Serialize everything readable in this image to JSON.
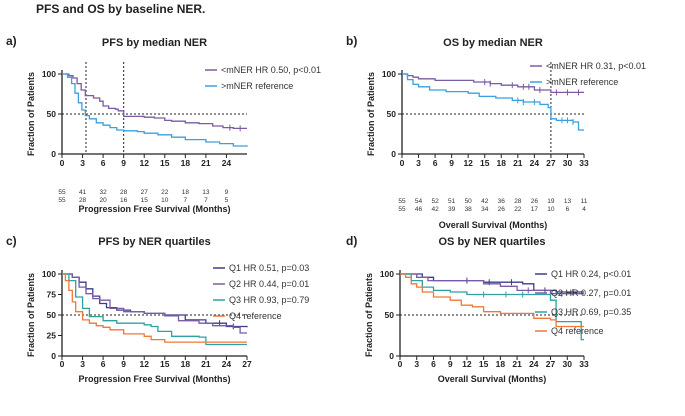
{
  "figure_title": "PFS and OS by baseline NER.",
  "chart_data": [
    {
      "panel_letter": "a)",
      "type": "line",
      "title": "PFS by median NER",
      "xlabel": "Progression Free Survival (Months)",
      "ylabel": "Fraction of Patients",
      "xlim": [
        0,
        27
      ],
      "ylim": [
        0,
        100
      ],
      "xticks": [
        0,
        3,
        6,
        9,
        12,
        15,
        18,
        21,
        24
      ],
      "yticks": [
        0,
        50,
        100
      ],
      "reference_y": 50,
      "vlines": [
        3.5,
        9
      ],
      "legend_position": "top-right",
      "at_risk": [
        [
          "55",
          "41",
          "32",
          "28",
          "27",
          "22",
          "18",
          "13",
          "9"
        ],
        [
          "55",
          "28",
          "20",
          "16",
          "15",
          "10",
          "7",
          "7",
          "5"
        ]
      ],
      "series": [
        {
          "name": "<mNER HR 0.50, p<0.01",
          "color": "#7b5aa6",
          "points": [
            [
              0,
              100
            ],
            [
              1,
              98
            ],
            [
              1.6,
              95
            ],
            [
              2.2,
              88
            ],
            [
              2.8,
              80
            ],
            [
              3.4,
              73
            ],
            [
              4.6,
              70
            ],
            [
              5.5,
              66
            ],
            [
              6,
              60
            ],
            [
              6.8,
              57
            ],
            [
              7.8,
              56
            ],
            [
              8.2,
              54
            ],
            [
              9,
              47
            ],
            [
              10,
              47
            ],
            [
              11.5,
              47
            ],
            [
              12,
              46
            ],
            [
              13.5,
              45
            ],
            [
              15,
              42
            ],
            [
              16,
              41
            ],
            [
              18,
              39
            ],
            [
              20,
              38
            ],
            [
              22,
              35
            ],
            [
              23.5,
              33
            ],
            [
              25,
              32
            ],
            [
              27,
              32
            ]
          ],
          "censor_x": [
            24.5,
            26
          ]
        },
        {
          "name": ">mNER reference",
          "color": "#3aa0e0",
          "points": [
            [
              0,
              100
            ],
            [
              0.8,
              96
            ],
            [
              1.4,
              88
            ],
            [
              1.9,
              76
            ],
            [
              2.4,
              64
            ],
            [
              2.9,
              55
            ],
            [
              3.4,
              48
            ],
            [
              4,
              44
            ],
            [
              5,
              39
            ],
            [
              6,
              36
            ],
            [
              7,
              33
            ],
            [
              8,
              30
            ],
            [
              9,
              29
            ],
            [
              11,
              28
            ],
            [
              12,
              26
            ],
            [
              14,
              24
            ],
            [
              16,
              21
            ],
            [
              18,
              18
            ],
            [
              21,
              15
            ],
            [
              23,
              13
            ],
            [
              25,
              10
            ],
            [
              27,
              9
            ]
          ],
          "censor_x": []
        }
      ]
    },
    {
      "panel_letter": "b)",
      "type": "line",
      "title": "OS by median NER",
      "xlabel": "Overall Survival (Months)",
      "ylabel": "Fraction of Patients",
      "xlim": [
        0,
        33
      ],
      "ylim": [
        0,
        100
      ],
      "xticks": [
        0,
        3,
        6,
        9,
        12,
        15,
        18,
        21,
        24,
        27,
        30,
        33
      ],
      "yticks": [
        0,
        50,
        100
      ],
      "reference_y": 50,
      "vlines": [
        27
      ],
      "legend_position": "top-right",
      "at_risk": [
        [
          "55",
          "54",
          "52",
          "51",
          "50",
          "42",
          "36",
          "28",
          "26",
          "19",
          "13",
          "11"
        ],
        [
          "55",
          "46",
          "42",
          "39",
          "38",
          "34",
          "26",
          "22",
          "17",
          "10",
          "6",
          "4"
        ]
      ],
      "series": [
        {
          "name": "<mNER HR 0.31, p<0.01",
          "color": "#7b5aa6",
          "points": [
            [
              0,
              100
            ],
            [
              1,
              98
            ],
            [
              2,
              96
            ],
            [
              3,
              94
            ],
            [
              6,
              92
            ],
            [
              12,
              92
            ],
            [
              13,
              90
            ],
            [
              16,
              88
            ],
            [
              18,
              86
            ],
            [
              21,
              84
            ],
            [
              24,
              80
            ],
            [
              27,
              77
            ],
            [
              33,
              77
            ]
          ],
          "censor_x": [
            15,
            16,
            20,
            22,
            23,
            25,
            28,
            30,
            32
          ]
        },
        {
          "name": ">mNER reference",
          "color": "#3aa0e0",
          "points": [
            [
              0,
              100
            ],
            [
              1,
              93
            ],
            [
              2,
              87
            ],
            [
              3,
              84
            ],
            [
              5,
              80
            ],
            [
              8,
              78
            ],
            [
              12,
              76
            ],
            [
              14,
              72
            ],
            [
              17,
              70
            ],
            [
              20,
              67
            ],
            [
              22,
              65
            ],
            [
              25,
              62
            ],
            [
              26.5,
              58
            ],
            [
              27,
              44
            ],
            [
              28,
              42
            ],
            [
              31,
              40
            ],
            [
              32,
              30
            ],
            [
              33,
              30
            ]
          ],
          "censor_x": [
            21,
            22,
            24,
            29,
            30,
            31
          ]
        }
      ]
    },
    {
      "panel_letter": "c)",
      "type": "line",
      "title": "PFS by NER quartiles",
      "xlabel": "Progression Free Survival (Months)",
      "ylabel": "Fraction of Patients",
      "xlim": [
        0,
        27
      ],
      "ylim": [
        0,
        100
      ],
      "xticks": [
        0,
        3,
        6,
        9,
        12,
        15,
        18,
        21,
        24,
        27
      ],
      "yticks": [
        0,
        25,
        50,
        75,
        100
      ],
      "reference_y": 50,
      "vlines": [],
      "legend_position": "top-right",
      "at_risk": [],
      "series": [
        {
          "name": "Q1 HR 0.51, p=0.03",
          "color": "#3c3c8c",
          "points": [
            [
              0,
              100
            ],
            [
              1.5,
              96
            ],
            [
              2.5,
              90
            ],
            [
              3.5,
              82
            ],
            [
              4.5,
              73
            ],
            [
              5.5,
              64
            ],
            [
              6.5,
              59
            ],
            [
              8,
              56
            ],
            [
              10,
              54
            ],
            [
              12,
              52
            ],
            [
              15,
              50
            ],
            [
              18,
              44
            ],
            [
              21,
              40
            ],
            [
              24,
              36
            ],
            [
              27,
              35
            ]
          ],
          "censor_x": [
            23,
            25
          ]
        },
        {
          "name": "Q2 HR 0.44, p=0.01",
          "color": "#7b5aa6",
          "points": [
            [
              0,
              100
            ],
            [
              1.5,
              96
            ],
            [
              2.5,
              84
            ],
            [
              3.5,
              76
            ],
            [
              4.5,
              70
            ],
            [
              5.5,
              68
            ],
            [
              7,
              58
            ],
            [
              9,
              54
            ],
            [
              12,
              52
            ],
            [
              15,
              49
            ],
            [
              17,
              43
            ],
            [
              20,
              40
            ],
            [
              22,
              37
            ],
            [
              25,
              35
            ],
            [
              26,
              28
            ],
            [
              27,
              28
            ]
          ],
          "censor_x": []
        },
        {
          "name": "Q3 HR 0.93, p=0.79",
          "color": "#30a0a0",
          "points": [
            [
              0,
              100
            ],
            [
              1,
              92
            ],
            [
              2,
              72
            ],
            [
              3,
              58
            ],
            [
              4,
              48
            ],
            [
              6,
              43
            ],
            [
              8,
              40
            ],
            [
              12,
              38
            ],
            [
              13,
              36
            ],
            [
              14,
              30
            ],
            [
              16,
              24
            ],
            [
              18,
              24
            ],
            [
              20,
              23
            ],
            [
              21,
              14
            ],
            [
              27,
              14
            ]
          ],
          "censor_x": []
        },
        {
          "name": "Q4 reference",
          "color": "#f07838",
          "points": [
            [
              0,
              100
            ],
            [
              0.5,
              92
            ],
            [
              1,
              80
            ],
            [
              1.5,
              66
            ],
            [
              2,
              54
            ],
            [
              3,
              44
            ],
            [
              4,
              40
            ],
            [
              5,
              37
            ],
            [
              6,
              35
            ],
            [
              7,
              32
            ],
            [
              9,
              27
            ],
            [
              12,
              24
            ],
            [
              13,
              20
            ],
            [
              15,
              17
            ],
            [
              27,
              17
            ]
          ],
          "censor_x": []
        }
      ]
    },
    {
      "panel_letter": "d)",
      "type": "line",
      "title": "OS by NER quartiles",
      "xlabel": "Overall Survival (Months)",
      "ylabel": "Fraction of Patients",
      "xlim": [
        0,
        33
      ],
      "ylim": [
        0,
        100
      ],
      "xticks": [
        0,
        3,
        6,
        9,
        12,
        15,
        18,
        21,
        24,
        27,
        30,
        33
      ],
      "yticks": [
        0,
        50,
        100
      ],
      "reference_y": 50,
      "vlines": [],
      "legend_position": "top-right",
      "at_risk": [],
      "series": [
        {
          "name": "Q1 HR 0.24, p<0.01",
          "color": "#3c3c8c",
          "points": [
            [
              0,
              100
            ],
            [
              3,
              100
            ],
            [
              4,
              96
            ],
            [
              6,
              92
            ],
            [
              9,
              92
            ],
            [
              15,
              90
            ],
            [
              22,
              88
            ],
            [
              24,
              80
            ],
            [
              28,
              78
            ],
            [
              33,
              78
            ]
          ],
          "censor_x": [
            12,
            16,
            20,
            26,
            31
          ]
        },
        {
          "name": "Q2 HR 0.27, p=0.01",
          "color": "#7b5aa6",
          "points": [
            [
              0,
              100
            ],
            [
              3,
              96
            ],
            [
              5,
              92
            ],
            [
              12,
              92
            ],
            [
              15,
              88
            ],
            [
              18,
              85
            ],
            [
              21,
              80
            ],
            [
              27,
              76
            ],
            [
              33,
              76
            ]
          ],
          "censor_x": [
            23,
            29
          ]
        },
        {
          "name": "Q3 HR 0.69, p=0.35",
          "color": "#30a0a0",
          "points": [
            [
              0,
              100
            ],
            [
              2,
              92
            ],
            [
              4,
              84
            ],
            [
              6,
              80
            ],
            [
              9,
              78
            ],
            [
              12,
              75
            ],
            [
              21,
              75
            ],
            [
              27,
              68
            ],
            [
              28,
              42
            ],
            [
              32,
              42
            ],
            [
              32.5,
              20
            ],
            [
              33,
              20
            ]
          ],
          "censor_x": [
            15,
            19,
            22
          ]
        },
        {
          "name": "Q4 reference",
          "color": "#f07838",
          "points": [
            [
              0,
              100
            ],
            [
              1,
              96
            ],
            [
              2,
              88
            ],
            [
              3,
              84
            ],
            [
              4,
              78
            ],
            [
              6,
              72
            ],
            [
              9,
              68
            ],
            [
              11,
              62
            ],
            [
              13,
              60
            ],
            [
              15,
              54
            ],
            [
              18,
              52
            ],
            [
              21,
              52
            ],
            [
              24,
              46
            ],
            [
              27,
              44
            ],
            [
              28,
              36
            ],
            [
              33,
              36
            ]
          ],
          "censor_x": []
        }
      ]
    }
  ]
}
